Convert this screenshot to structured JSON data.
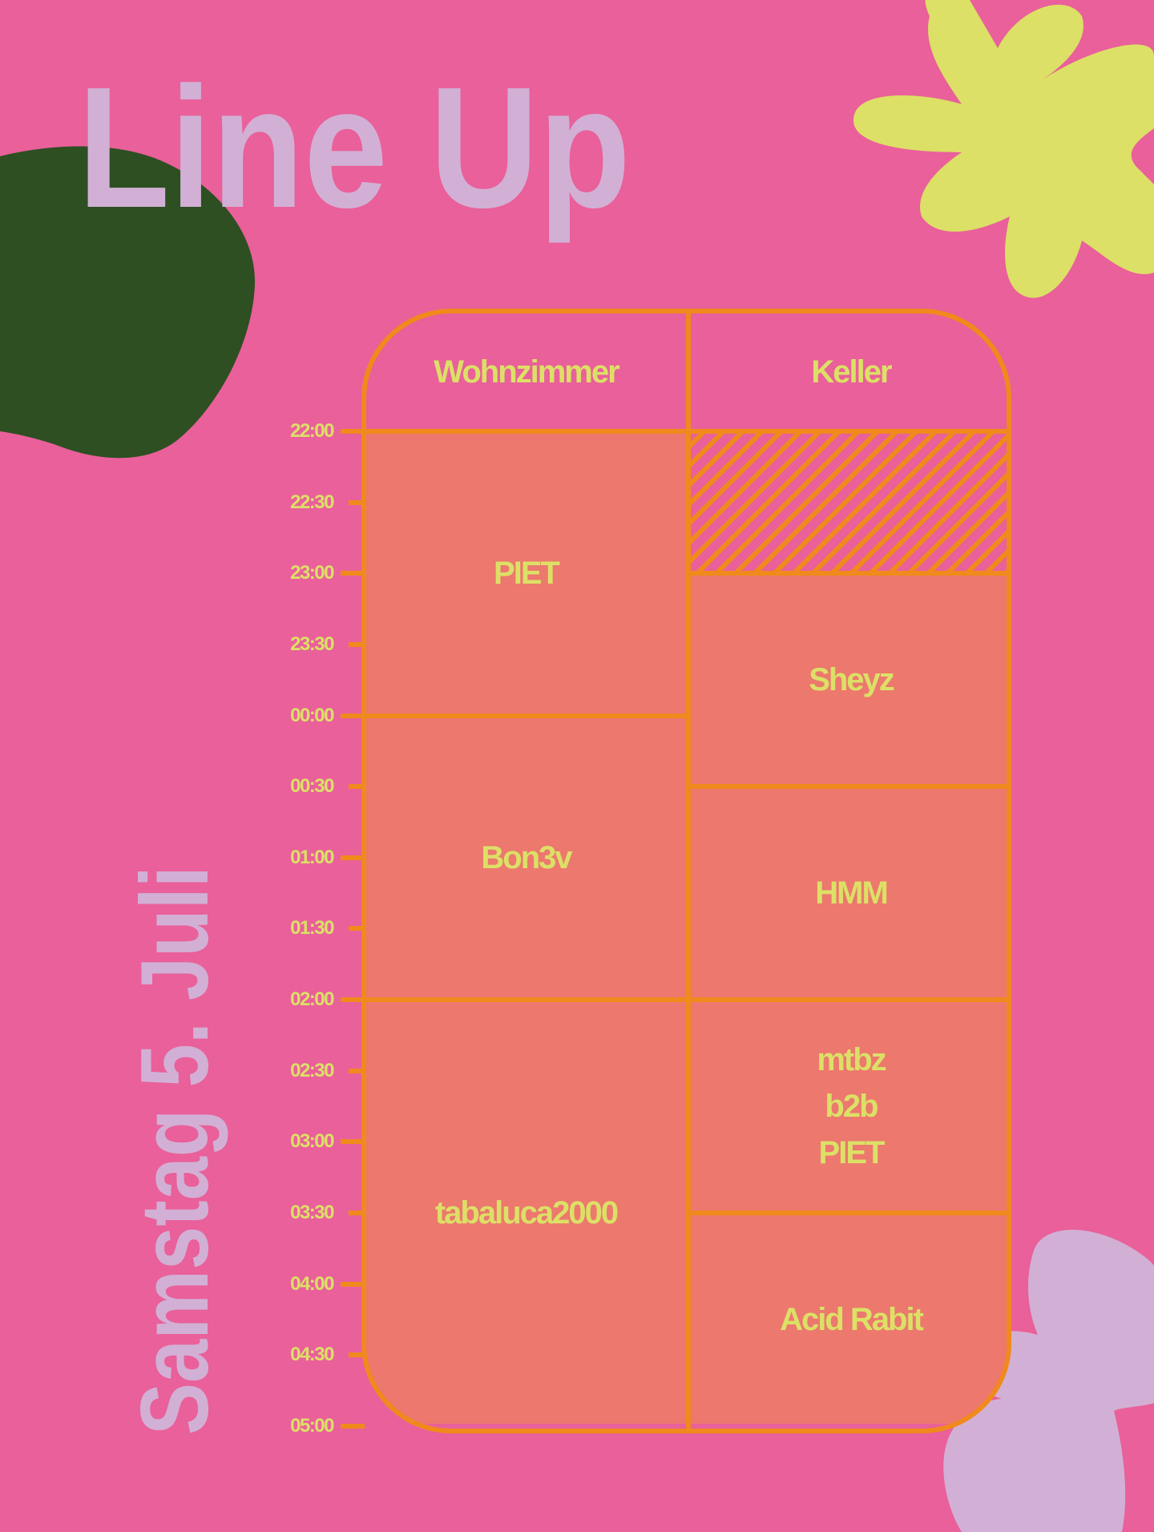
{
  "title": "Line Up",
  "date": "Samstag 5. Juli",
  "colors": {
    "background": "#e9609a",
    "line": "#f08a1c",
    "cell": "#ec786e",
    "text": "#dce066",
    "lilac": "#d2b0d5",
    "green": "#2d4f22",
    "yellow_flower": "#dce066"
  },
  "stages": [
    {
      "name": "Wohnzimmer",
      "slots": [
        {
          "artist": "PIET",
          "start": "22:00",
          "end": "00:00"
        },
        {
          "artist": "Bon3v",
          "start": "00:00",
          "end": "02:00"
        },
        {
          "artist": "tabaluca2000",
          "start": "02:00",
          "end": "05:00"
        }
      ]
    },
    {
      "name": "Keller",
      "slots": [
        {
          "artist": "",
          "start": "22:00",
          "end": "23:00",
          "empty": true
        },
        {
          "artist": "Sheyz",
          "start": "23:00",
          "end": "00:30"
        },
        {
          "artist": "HMM",
          "start": "00:30",
          "end": "02:00"
        },
        {
          "artist": "mtbz\nb2b\nPIET",
          "start": "02:00",
          "end": "03:30"
        },
        {
          "artist": "Acid Rabit",
          "start": "03:30",
          "end": "05:00"
        }
      ]
    }
  ],
  "times": [
    "22:00",
    "22:30",
    "23:00",
    "23:30",
    "00:00",
    "00:30",
    "01:00",
    "01:30",
    "02:00",
    "02:30",
    "03:00",
    "03:30",
    "04:00",
    "04:30",
    "05:00"
  ]
}
